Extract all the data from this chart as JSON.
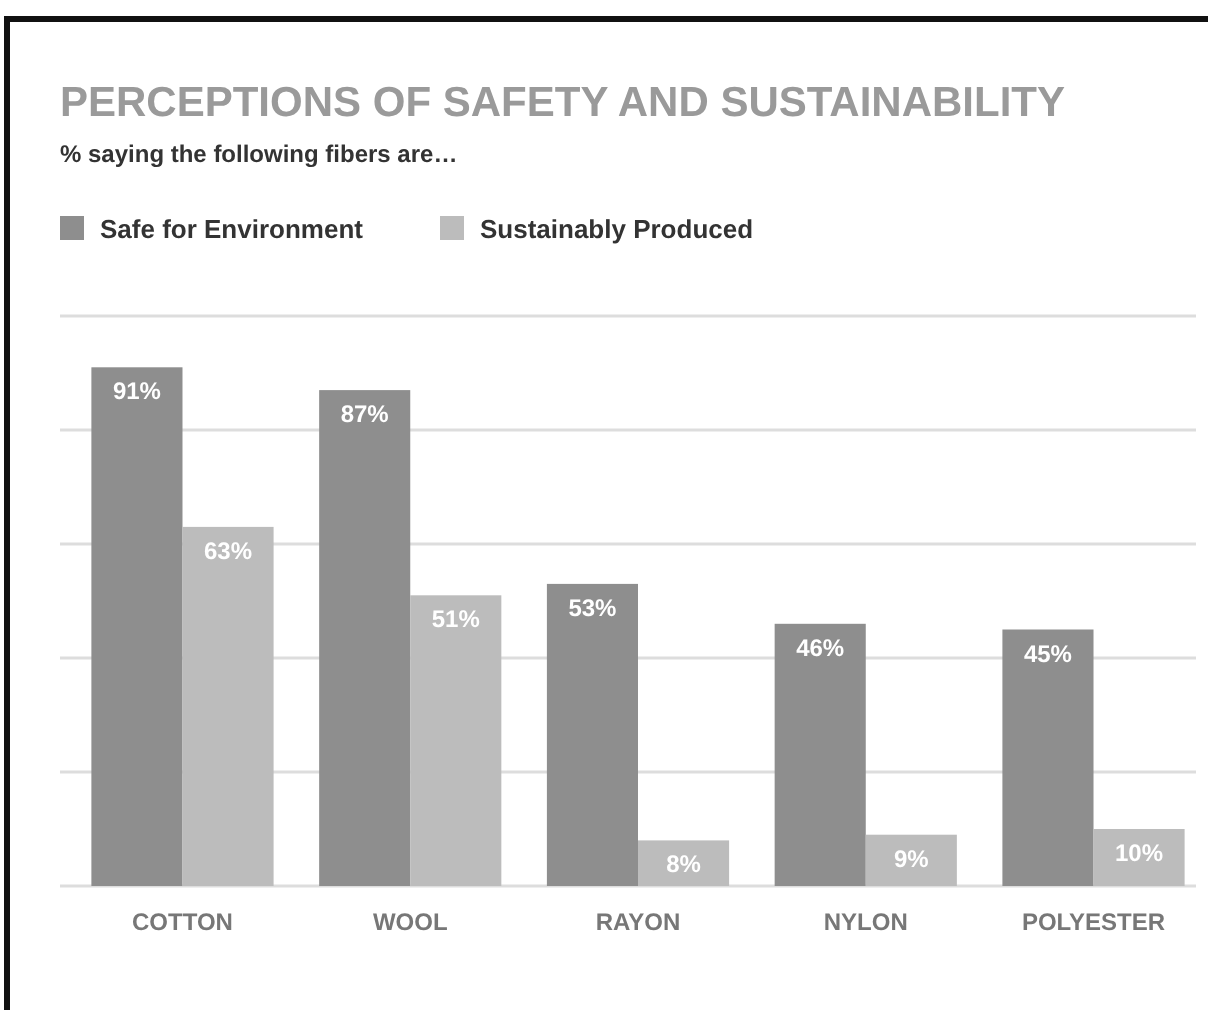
{
  "chart_data": {
    "type": "bar",
    "title": "PERCEPTIONS OF SAFETY AND SUSTAINABILITY",
    "subtitle": "% saying the following fibers are…",
    "categories": [
      "COTTON",
      "WOOL",
      "RAYON",
      "NYLON",
      "POLYESTER"
    ],
    "series": [
      {
        "name": "Safe for Environment",
        "color": "#8e8e8e",
        "values": [
          91,
          87,
          53,
          46,
          45
        ],
        "value_labels": [
          "91%",
          "87%",
          "53%",
          "46%",
          "45%"
        ]
      },
      {
        "name": "Sustainably Produced",
        "color": "#bcbcbc",
        "values": [
          63,
          51,
          8,
          9,
          10
        ],
        "value_labels": [
          "63%",
          "51%",
          "8%",
          "9%",
          "10%"
        ]
      }
    ],
    "grid": "y",
    "tick_labels": "x",
    "legend": "top left"
  }
}
